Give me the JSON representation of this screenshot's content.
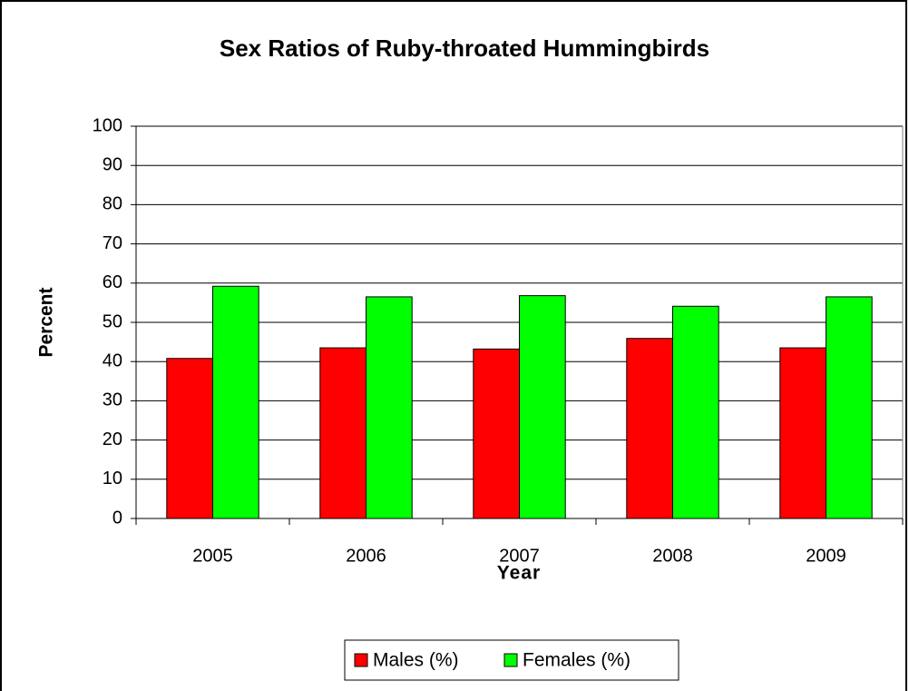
{
  "chart_data": {
    "type": "bar",
    "title": "Sex Ratios of Ruby-throated Hummingbirds",
    "x_label": "Year",
    "y_label": "Percent",
    "categories": [
      "2005",
      "2006",
      "2007",
      "2008",
      "2009"
    ],
    "series": [
      {
        "name": "Males (%)",
        "color": "#ff0000",
        "values": [
          40.8,
          43.5,
          43.2,
          45.9,
          43.5
        ]
      },
      {
        "name": "Females (%)",
        "color": "#00ff00",
        "values": [
          59.2,
          56.5,
          56.8,
          54.1,
          56.5
        ]
      }
    ],
    "ylim": [
      0,
      100
    ],
    "yticks": [
      0,
      10,
      20,
      30,
      40,
      50,
      60,
      70,
      80,
      90,
      100
    ],
    "grid": true,
    "legend": "bottom"
  }
}
